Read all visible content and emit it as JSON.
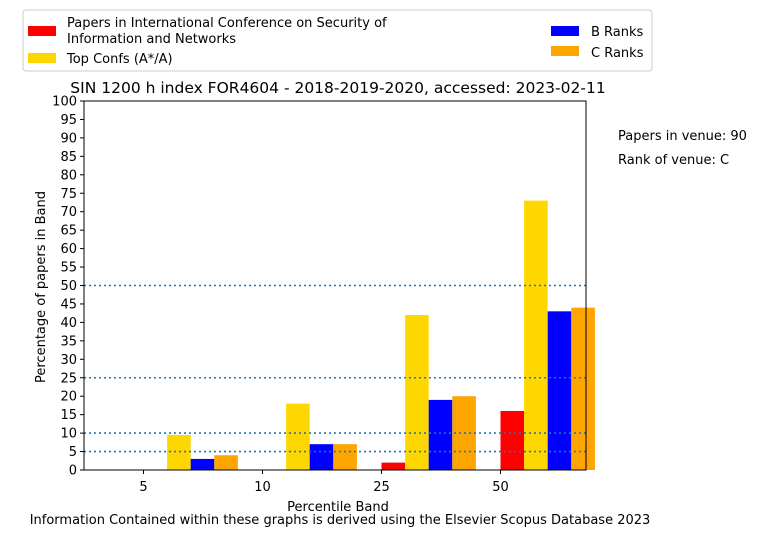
{
  "chart_data": {
    "type": "bar",
    "title": "SIN 1200 h index FOR4604 - 2018-2019-2020, accessed: 2023-02-11",
    "xlabel": "Percentile Band",
    "ylabel": "Percentage of papers in Band",
    "categories": [
      "5",
      "10",
      "25",
      "50"
    ],
    "ylim": [
      0,
      100
    ],
    "yticks": [
      "0",
      "5",
      "10",
      "15",
      "20",
      "25",
      "30",
      "35",
      "40",
      "45",
      "50",
      "55",
      "60",
      "65",
      "70",
      "75",
      "80",
      "85",
      "90",
      "95",
      "100"
    ],
    "series": [
      {
        "name": "Papers in International Conference on Security of Information and Networks",
        "color": "#ff0000",
        "values": [
          0,
          0,
          2,
          16
        ]
      },
      {
        "name": "Top Confs (A*/A)",
        "color": "#ffd700",
        "values": [
          9.5,
          18,
          42,
          73
        ]
      },
      {
        "name": "B Ranks",
        "color": "#0000ff",
        "values": [
          3,
          7,
          19,
          43
        ]
      },
      {
        "name": "C Ranks",
        "color": "#ffa500",
        "values": [
          4,
          7,
          20,
          44
        ]
      }
    ],
    "reference_lines": [
      5,
      10,
      25,
      50
    ],
    "reference_line_color": "#1f77b4",
    "grid": false,
    "legend_position": "top"
  },
  "annotations": {
    "papers_in_venue": "Papers in venue: 90",
    "rank_of_venue": "Rank of venue: C"
  },
  "footer": "Information Contained within these graphs is derived using the Elsevier Scopus Database 2023"
}
